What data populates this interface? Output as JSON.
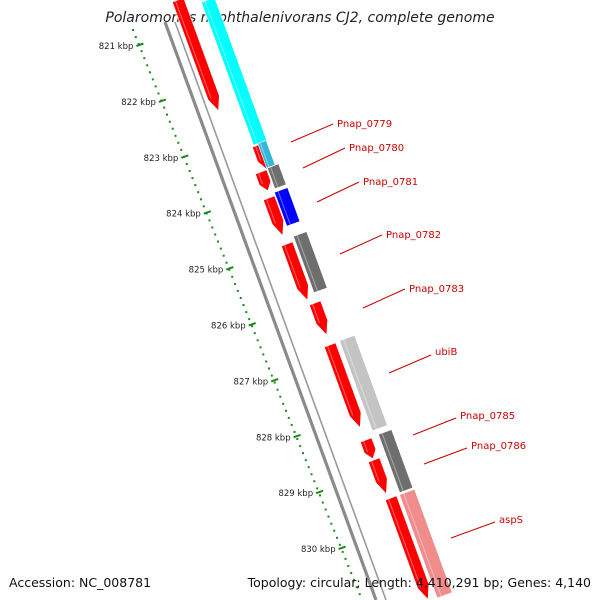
{
  "title": "Polaromonas naphthalenivorans CJ2, complete genome",
  "footer": {
    "accession": "Accession: NC_008781",
    "summary": "Topology: circular; Length: 4,410,291 bp; Genes: 4,140"
  },
  "colors": {
    "cds": "#ff0000",
    "backbone": "#8a8a8a",
    "tick": "#1a8a1a",
    "label": "#cc0000",
    "cyan": "#00ffff",
    "blue": "#0000ff",
    "dark_gray": "#6e6e6e",
    "light_gray": "#c4c4c4",
    "pink": "#f08c8c"
  },
  "scale": [
    {
      "label": "821 kbp"
    },
    {
      "label": "822 kbp"
    },
    {
      "label": "823 kbp"
    },
    {
      "label": "824 kbp"
    },
    {
      "label": "825 kbp"
    },
    {
      "label": "826 kbp"
    },
    {
      "label": "827 kbp"
    },
    {
      "label": "828 kbp"
    },
    {
      "label": "829 kbp"
    },
    {
      "label": "830 kbp"
    }
  ],
  "genes": [
    {
      "name": "Pnap_0779"
    },
    {
      "name": "Pnap_0780"
    },
    {
      "name": "Pnap_0781"
    },
    {
      "name": "Pnap_0782"
    },
    {
      "name": "Pnap_0783"
    },
    {
      "name": "ubiB"
    },
    {
      "name": "Pnap_0785"
    },
    {
      "name": "Pnap_0786"
    },
    {
      "name": "aspS"
    }
  ]
}
